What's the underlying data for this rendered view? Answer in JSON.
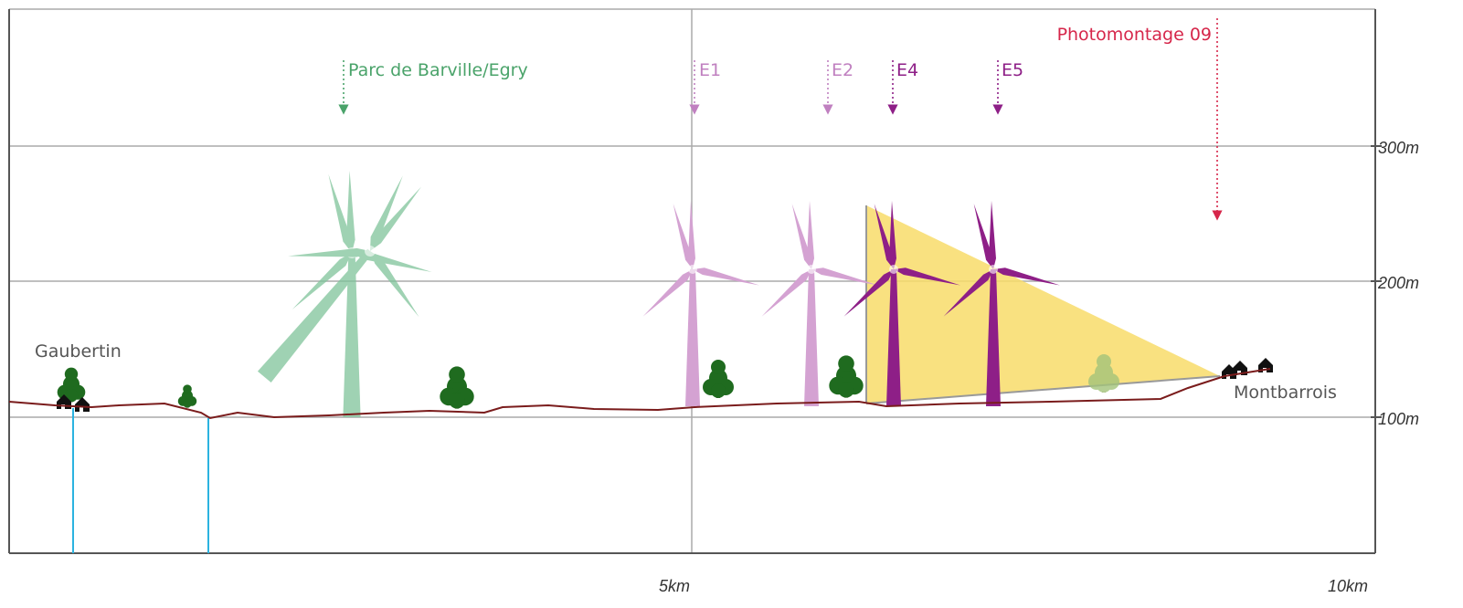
{
  "labels": {
    "parc": "Parc de Barville/Egry",
    "e1": "E1",
    "e2": "E2",
    "e4": "E4",
    "e5": "E5",
    "photomontage": "Photomontage 09",
    "gaubertin": "Gaubertin",
    "montbarrois": "Montbarrois"
  },
  "axis": {
    "y": [
      "300m",
      "200m",
      "100m"
    ],
    "x": [
      "5km",
      "10km"
    ]
  }
}
